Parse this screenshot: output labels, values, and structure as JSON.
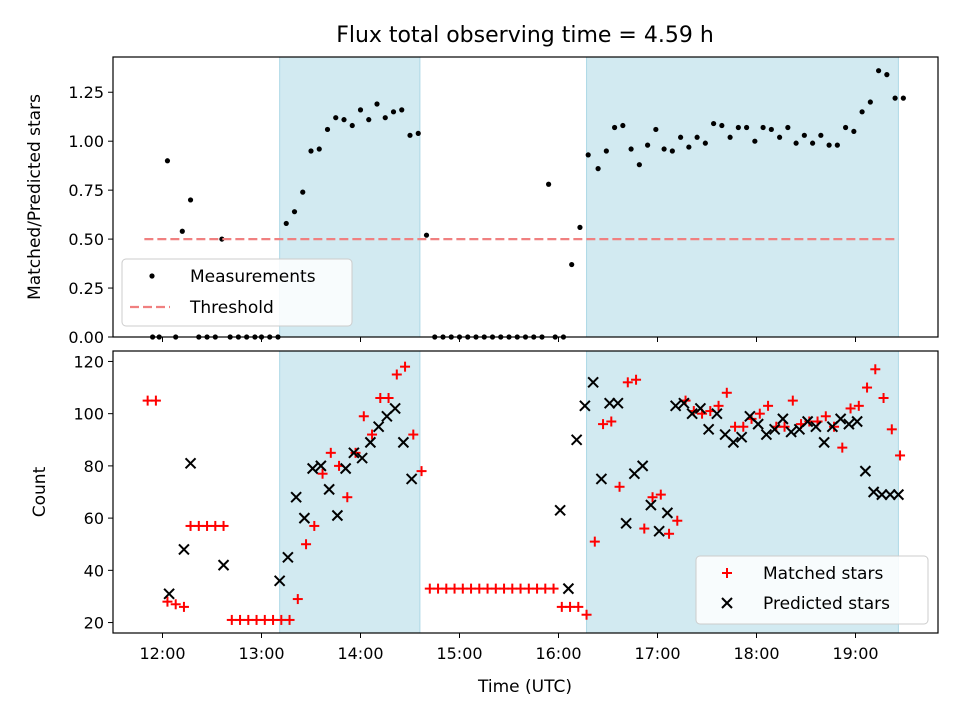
{
  "figure": {
    "title": "Flux total observing time = 4.59 h"
  },
  "chart_data": [
    {
      "type": "scatter",
      "ylabel": "Matched/Predicted stars",
      "xlim": [
        "11:30",
        "19:50"
      ],
      "ylim": [
        0,
        1.43
      ],
      "yticks": [
        0.0,
        0.25,
        0.5,
        0.75,
        1.0,
        1.25
      ],
      "ytick_labels": [
        "0.00",
        "0.25",
        "0.50",
        "0.75",
        "1.00",
        "1.25"
      ],
      "grid": false,
      "legend": "lower-left",
      "shaded_intervals": [
        [
          "13:11",
          "14:36"
        ],
        [
          "16:17",
          "19:26"
        ]
      ],
      "shade_color": "#add8e6",
      "series": [
        {
          "name": "Measurements",
          "marker": "dot",
          "color": "#000000",
          "x": [
            "11:54",
            "11:58",
            "12:03",
            "12:08",
            "12:12",
            "12:17",
            "12:22",
            "12:27",
            "12:32",
            "12:36",
            "12:41",
            "12:46",
            "12:51",
            "12:56",
            "13:00",
            "13:05",
            "13:10",
            "13:15",
            "13:20",
            "13:25",
            "13:30",
            "13:35",
            "13:40",
            "13:45",
            "13:50",
            "13:55",
            "14:00",
            "14:05",
            "14:10",
            "14:15",
            "14:20",
            "14:25",
            "14:30",
            "14:35",
            "14:40",
            "14:45",
            "14:50",
            "14:55",
            "15:00",
            "15:05",
            "15:10",
            "15:15",
            "15:20",
            "15:25",
            "15:30",
            "15:35",
            "15:40",
            "15:45",
            "15:50",
            "15:54",
            "15:58",
            "16:03",
            "16:08",
            "16:13",
            "16:18",
            "16:24",
            "16:29",
            "16:34",
            "16:39",
            "16:44",
            "16:49",
            "16:54",
            "16:59",
            "17:04",
            "17:09",
            "17:14",
            "17:19",
            "17:24",
            "17:29",
            "17:34",
            "17:39",
            "17:44",
            "17:49",
            "17:54",
            "17:59",
            "18:04",
            "18:09",
            "18:14",
            "18:19",
            "18:24",
            "18:29",
            "18:34",
            "18:39",
            "18:44",
            "18:49",
            "18:54",
            "18:59",
            "19:04",
            "19:09",
            "19:14",
            "19:19",
            "19:24",
            "19:29"
          ],
          "y": [
            0.0,
            0.0,
            0.9,
            0.0,
            0.54,
            0.7,
            0.0,
            0.0,
            0.0,
            0.5,
            0.0,
            0.0,
            0.0,
            0.0,
            0.0,
            0.0,
            0.0,
            0.58,
            0.64,
            0.74,
            0.95,
            0.96,
            1.06,
            1.12,
            1.11,
            1.08,
            1.16,
            1.11,
            1.19,
            1.12,
            1.15,
            1.16,
            1.03,
            1.04,
            0.52,
            0.0,
            0.0,
            0.0,
            0.0,
            0.0,
            0.0,
            0.0,
            0.0,
            0.0,
            0.0,
            0.0,
            0.0,
            0.0,
            0.0,
            0.78,
            0.0,
            0.0,
            0.37,
            0.56,
            0.93,
            0.86,
            0.95,
            1.07,
            1.08,
            0.96,
            0.88,
            0.98,
            1.06,
            0.96,
            0.95,
            1.02,
            0.97,
            1.02,
            0.99,
            1.09,
            1.08,
            1.02,
            1.07,
            1.07,
            1.0,
            1.07,
            1.06,
            1.02,
            1.07,
            0.99,
            1.03,
            0.99,
            1.03,
            0.98,
            0.98,
            1.07,
            1.05,
            1.15,
            1.2,
            1.36,
            1.34,
            1.22,
            1.22
          ]
        },
        {
          "name": "Threshold",
          "marker": "dashed-line",
          "color": "#f08080",
          "x": [
            "11:49",
            "19:26"
          ],
          "y": [
            0.5,
            0.5
          ]
        }
      ]
    },
    {
      "type": "scatter",
      "xlabel": "Time (UTC)",
      "ylabel": "Count",
      "xlim": [
        "11:30",
        "19:50"
      ],
      "ylim": [
        16,
        124
      ],
      "yticks": [
        20,
        40,
        60,
        80,
        100,
        120
      ],
      "ytick_labels": [
        "20",
        "40",
        "60",
        "80",
        "100",
        "120"
      ],
      "xticks": [
        "12:00",
        "13:00",
        "14:00",
        "15:00",
        "16:00",
        "17:00",
        "18:00",
        "19:00"
      ],
      "xtick_labels": [
        "12:00",
        "13:00",
        "14:00",
        "15:00",
        "16:00",
        "17:00",
        "18:00",
        "19:00"
      ],
      "grid": false,
      "legend": "lower-right",
      "shaded_intervals": [
        [
          "13:11",
          "14:36"
        ],
        [
          "16:17",
          "19:26"
        ]
      ],
      "shade_color": "#add8e6",
      "series": [
        {
          "name": "Matched stars",
          "marker": "plus",
          "color": "#ff0000",
          "x": [
            "11:51",
            "11:56",
            "12:03",
            "12:08",
            "12:13",
            "12:17",
            "12:22",
            "12:27",
            "12:32",
            "12:37",
            "12:42",
            "12:47",
            "12:52",
            "12:57",
            "13:02",
            "13:07",
            "13:12",
            "13:17",
            "13:22",
            "13:27",
            "13:32",
            "13:37",
            "13:42",
            "13:47",
            "13:52",
            "13:57",
            "14:02",
            "14:07",
            "14:12",
            "14:17",
            "14:22",
            "14:27",
            "14:32",
            "14:37",
            "14:42",
            "14:47",
            "14:52",
            "14:57",
            "15:02",
            "15:07",
            "15:12",
            "15:17",
            "15:22",
            "15:27",
            "15:32",
            "15:37",
            "15:42",
            "15:47",
            "15:52",
            "15:57",
            "16:02",
            "16:07",
            "16:12",
            "16:17",
            "16:22",
            "16:27",
            "16:32",
            "16:37",
            "16:42",
            "16:47",
            "16:52",
            "16:57",
            "17:02",
            "17:07",
            "17:12",
            "17:17",
            "17:22",
            "17:27",
            "17:32",
            "17:37",
            "17:42",
            "17:47",
            "17:52",
            "17:57",
            "18:02",
            "18:07",
            "18:12",
            "18:17",
            "18:22",
            "18:27",
            "18:32",
            "18:37",
            "18:42",
            "18:47",
            "18:52",
            "18:57",
            "19:02",
            "19:07",
            "19:12",
            "19:17",
            "19:22",
            "19:27"
          ],
          "y": [
            105,
            105,
            28,
            27,
            26,
            57,
            57,
            57,
            57,
            57,
            21,
            21,
            21,
            21,
            21,
            21,
            21,
            21,
            29,
            50,
            57,
            77,
            85,
            80,
            68,
            85,
            99,
            92,
            106,
            106,
            115,
            118,
            92,
            78,
            33,
            33,
            33,
            33,
            33,
            33,
            33,
            33,
            33,
            33,
            33,
            33,
            33,
            33,
            33,
            33,
            26,
            26,
            26,
            23,
            51,
            96,
            97,
            72,
            112,
            113,
            56,
            68,
            69,
            54,
            59,
            105,
            101,
            100,
            101,
            103,
            108,
            95,
            95,
            98,
            100,
            103,
            95,
            95,
            105,
            96,
            97,
            97,
            99,
            95,
            87,
            102,
            103,
            110,
            117,
            106,
            94,
            84
          ]
        },
        {
          "name": "Predicted stars",
          "marker": "x",
          "color": "#000000",
          "x": [
            "12:04",
            "12:13",
            "12:17",
            "12:37",
            "13:11",
            "13:16",
            "13:21",
            "13:26",
            "13:31",
            "13:36",
            "13:41",
            "13:46",
            "13:51",
            "13:56",
            "14:01",
            "14:06",
            "14:11",
            "14:16",
            "14:21",
            "14:26",
            "14:31",
            "16:01",
            "16:06",
            "16:11",
            "16:16",
            "16:21",
            "16:26",
            "16:31",
            "16:36",
            "16:41",
            "16:46",
            "16:51",
            "16:56",
            "17:01",
            "17:06",
            "17:11",
            "17:16",
            "17:21",
            "17:26",
            "17:31",
            "17:36",
            "17:41",
            "17:46",
            "17:51",
            "17:56",
            "18:01",
            "18:06",
            "18:11",
            "18:16",
            "18:21",
            "18:26",
            "18:31",
            "18:36",
            "18:41",
            "18:46",
            "18:51",
            "18:56",
            "19:01",
            "19:06",
            "19:11",
            "19:16",
            "19:21",
            "19:26"
          ],
          "y": [
            31,
            48,
            81,
            42,
            36,
            45,
            68,
            60,
            79,
            80,
            71,
            61,
            79,
            85,
            83,
            89,
            95,
            99,
            102,
            89,
            75,
            63,
            33,
            90,
            103,
            112,
            75,
            104,
            104,
            58,
            77,
            80,
            65,
            55,
            62,
            103,
            104,
            100,
            102,
            94,
            100,
            92,
            89,
            91,
            99,
            96,
            92,
            94,
            98,
            93,
            94,
            97,
            95,
            89,
            95,
            98,
            96,
            97,
            78,
            70,
            69,
            69,
            69
          ]
        }
      ]
    }
  ]
}
